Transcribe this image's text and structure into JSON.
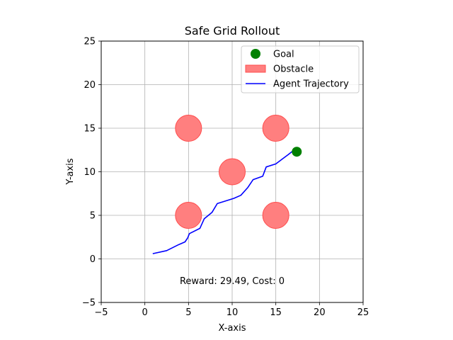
{
  "chart_data": {
    "type": "scatter",
    "title": "Safe Grid Rollout",
    "xlabel": "X-axis",
    "ylabel": "Y-axis",
    "xlim": [
      -5,
      25
    ],
    "ylim": [
      -5,
      25
    ],
    "xticks": [
      -5,
      0,
      5,
      10,
      15,
      20,
      25
    ],
    "yticks": [
      -5,
      0,
      5,
      10,
      15,
      20,
      25
    ],
    "xtick_labels": [
      "−5",
      "0",
      "5",
      "10",
      "15",
      "20",
      "25"
    ],
    "ytick_labels": [
      "−5",
      "0",
      "5",
      "10",
      "15",
      "20",
      "25"
    ],
    "grid": true,
    "legend_position": "top-right",
    "legend": [
      {
        "label": "Goal",
        "kind": "marker",
        "color": "#008000"
      },
      {
        "label": "Obstacle",
        "kind": "patch",
        "color": "#ff7f7f"
      },
      {
        "label": "Agent Trajectory",
        "kind": "line",
        "color": "#0000ff"
      }
    ],
    "goal": {
      "x": 17.4,
      "y": 12.3,
      "color": "#008000"
    },
    "obstacles": {
      "radius": 1.5,
      "color": "#ff7f7f",
      "edge_color": "#ff4d4d",
      "centers": [
        {
          "x": 5,
          "y": 15
        },
        {
          "x": 15,
          "y": 15
        },
        {
          "x": 10,
          "y": 10
        },
        {
          "x": 5,
          "y": 5
        },
        {
          "x": 15,
          "y": 5
        }
      ]
    },
    "trajectory": {
      "color": "#0000ff",
      "x": [
        0.9,
        2.5,
        3.8,
        4.6,
        4.9,
        5.1,
        6.3,
        6.8,
        7.7,
        8.3,
        9.4,
        10.2,
        11.0,
        11.8,
        12.4,
        13.5,
        13.9,
        15.0,
        15.8,
        16.4,
        16.9
      ],
      "y": [
        0.6,
        0.95,
        1.6,
        1.95,
        2.4,
        2.9,
        3.5,
        4.6,
        5.35,
        6.35,
        6.7,
        6.95,
        7.3,
        8.2,
        9.1,
        9.5,
        10.55,
        10.9,
        11.5,
        11.95,
        12.35
      ]
    },
    "annotation": "Reward: 29.49, Cost: 0",
    "annotation_pos": {
      "x": 10,
      "y": -2.5
    }
  }
}
